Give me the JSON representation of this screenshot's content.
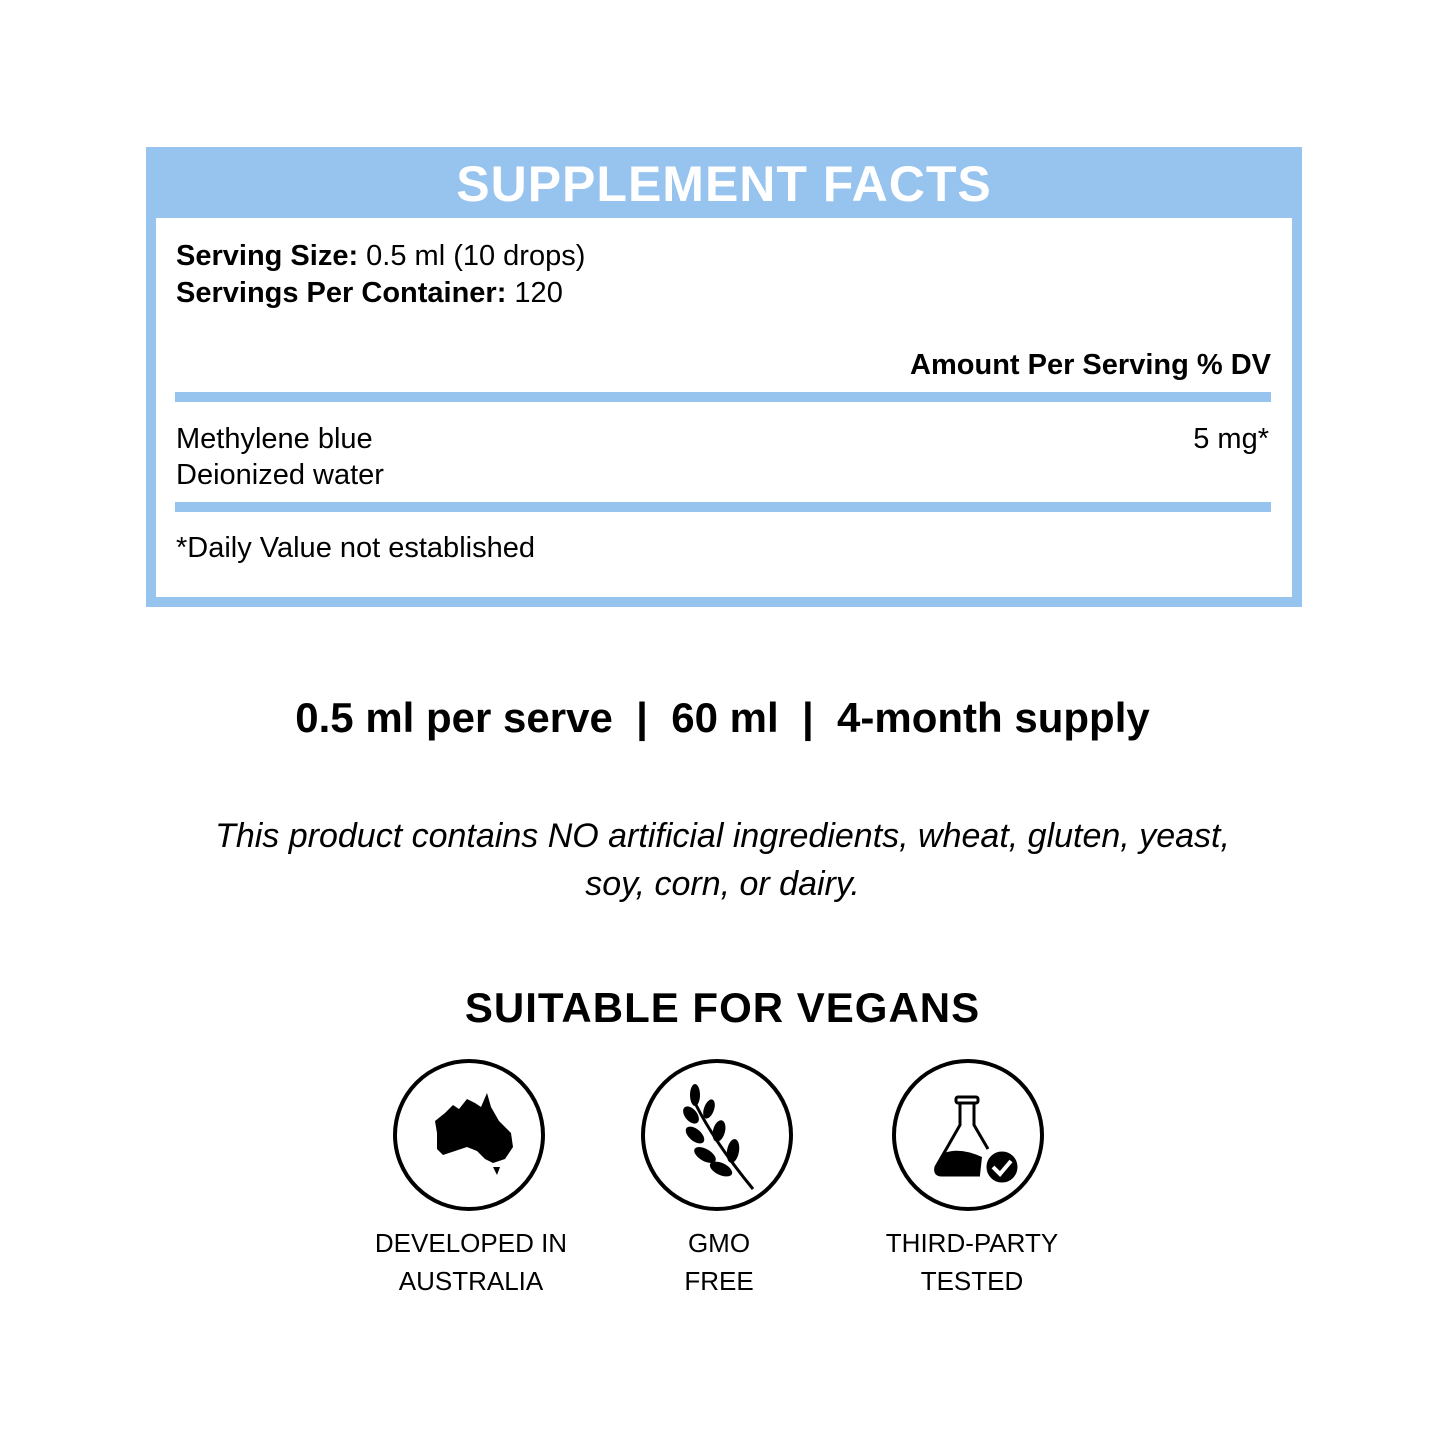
{
  "facts": {
    "title": "SUPPLEMENT FACTS",
    "serving_size_label": "Serving Size:",
    "serving_size_value": " 0.5 ml (10 drops)",
    "servings_label": "Servings Per Container:",
    "servings_value": " 120",
    "column_header": "Amount Per Serving % DV",
    "ingredients": [
      {
        "name": "Methylene blue",
        "amount": "5 mg*"
      },
      {
        "name": "Deionized water",
        "amount": ""
      }
    ],
    "footnote": "*Daily Value not established",
    "accent_color": "#97c3ef"
  },
  "summary": "0.5 ml per serve  |  60 ml  |  4-month supply",
  "free_from": [
    "This product contains NO artificial ingredients, wheat, gluten, yeast,",
    "soy, corn, or dairy."
  ],
  "vegan": "SUITABLE FOR VEGANS",
  "badges": [
    {
      "icon": "australia-map-icon",
      "lines": [
        "DEVELOPED IN",
        "AUSTRALIA"
      ]
    },
    {
      "icon": "wheat-leaf-icon",
      "lines": [
        "GMO",
        "FREE"
      ]
    },
    {
      "icon": "flask-check-icon",
      "lines": [
        "THIRD-PARTY",
        "TESTED"
      ]
    }
  ]
}
